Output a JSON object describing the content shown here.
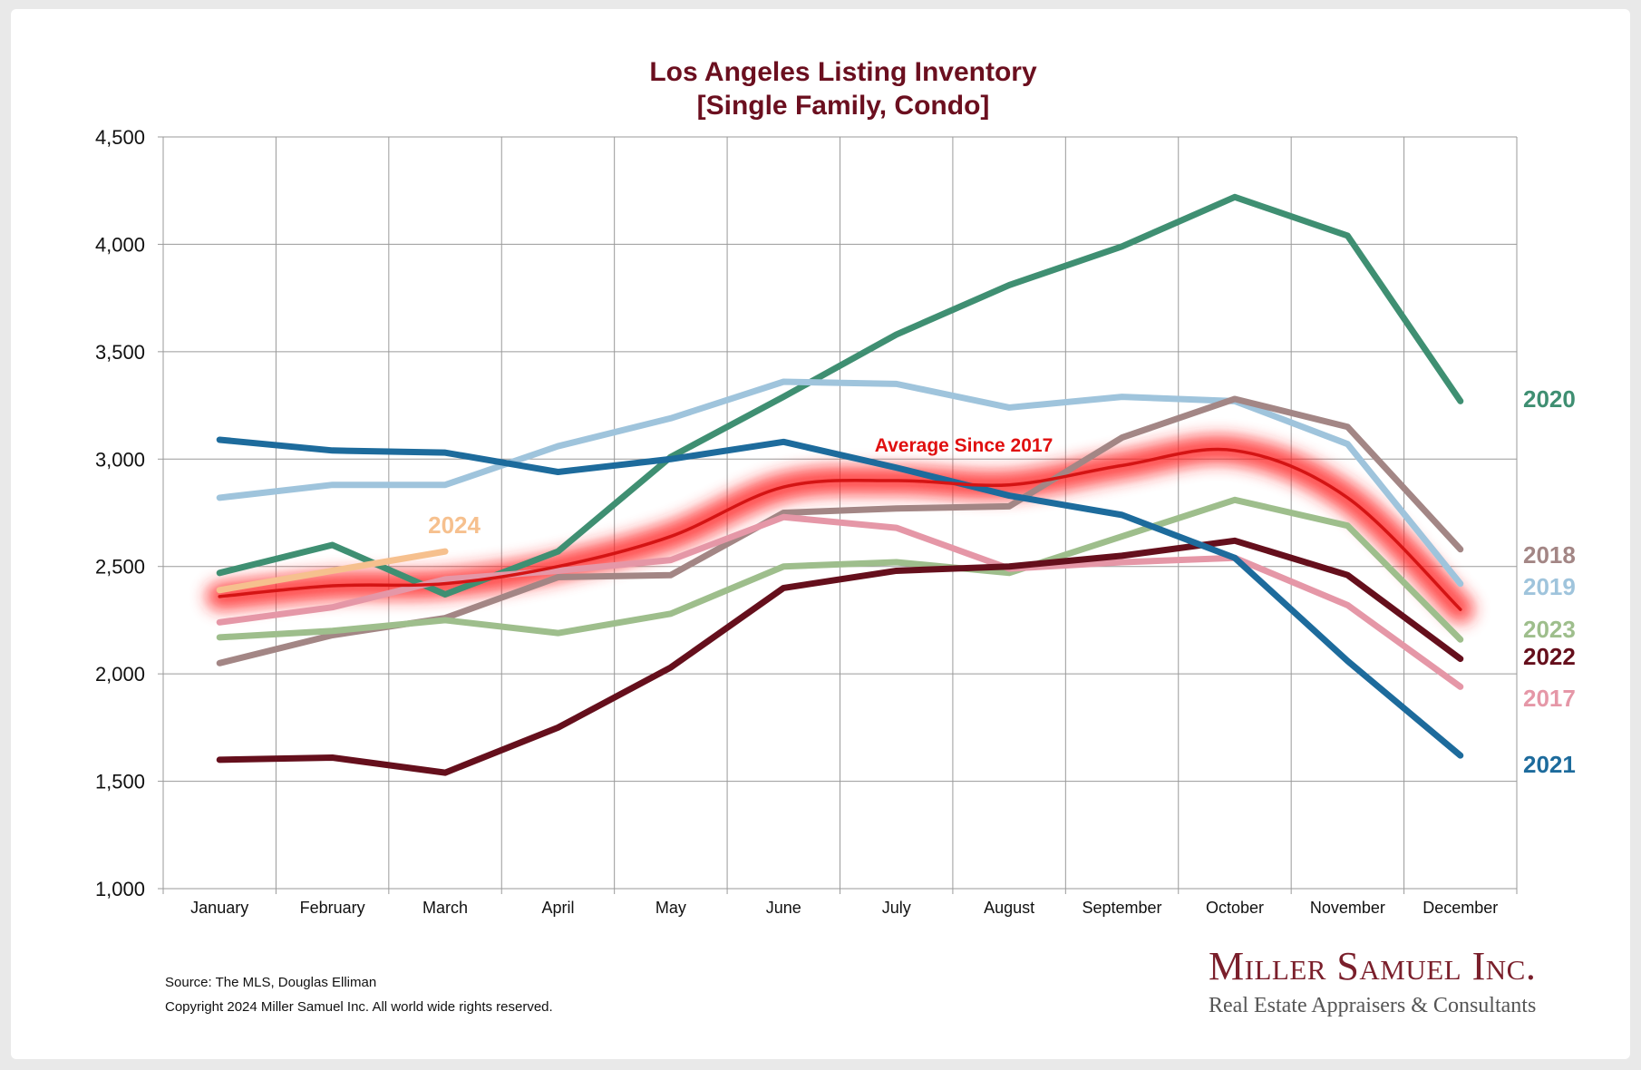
{
  "chart_data": {
    "type": "line",
    "title": "Los Angeles Listing Inventory",
    "subtitle": "[Single Family, Condo]",
    "xlabel": "",
    "ylabel": "",
    "categories": [
      "January",
      "February",
      "March",
      "April",
      "May",
      "June",
      "July",
      "August",
      "September",
      "October",
      "November",
      "December"
    ],
    "ylim": [
      1000,
      4500
    ],
    "yticks": [
      1000,
      1500,
      2000,
      2500,
      3000,
      3500,
      4000,
      4500
    ],
    "ytick_labels": [
      "1,000",
      "1,500",
      "2,000",
      "2,500",
      "3,000",
      "3,500",
      "4,000",
      "4,500"
    ],
    "grid": true,
    "average_label": "Average  Since 2017",
    "average": {
      "values": [
        2360,
        2410,
        2420,
        2500,
        2640,
        2870,
        2900,
        2880,
        2970,
        3040,
        2820,
        2300
      ],
      "color": "#d41414",
      "glow": "#ff2020"
    },
    "series": [
      {
        "name": "2020",
        "color": "#3f8f72",
        "values": [
          2470,
          2600,
          2370,
          2570,
          3010,
          3290,
          3580,
          3810,
          3990,
          4220,
          4040,
          3270
        ]
      },
      {
        "name": "2019",
        "color": "#9fc4dc",
        "values": [
          2820,
          2880,
          2880,
          3060,
          3190,
          3360,
          3350,
          3240,
          3290,
          3270,
          3070,
          2420
        ]
      },
      {
        "name": "2018",
        "color": "#a38685",
        "values": [
          2050,
          2180,
          2260,
          2450,
          2460,
          2750,
          2770,
          2780,
          3100,
          3280,
          3150,
          2580
        ]
      },
      {
        "name": "2023",
        "color": "#9ebe8c",
        "values": [
          2170,
          2200,
          2250,
          2190,
          2280,
          2500,
          2520,
          2470,
          2640,
          2810,
          2690,
          2160
        ]
      },
      {
        "name": "2017",
        "color": "#e597a7",
        "values": [
          2240,
          2310,
          2440,
          2480,
          2530,
          2730,
          2680,
          2490,
          2520,
          2540,
          2320,
          1940
        ]
      },
      {
        "name": "2022",
        "color": "#650f1c",
        "values": [
          1600,
          1610,
          1540,
          1750,
          2030,
          2400,
          2480,
          2500,
          2550,
          2620,
          2460,
          2070
        ]
      },
      {
        "name": "2021",
        "color": "#1d6b9c",
        "values": [
          3090,
          3040,
          3030,
          2940,
          3000,
          3080,
          2960,
          2830,
          2740,
          2540,
          2060,
          1620
        ]
      },
      {
        "name": "2024",
        "color": "#f6c08e",
        "values": [
          2390,
          2480,
          2570,
          null,
          null,
          null,
          null,
          null,
          null,
          null,
          null,
          null
        ]
      }
    ]
  },
  "footer": {
    "source": "Source: The MLS, Douglas Elliman",
    "copyright": "Copyright 2024 Miller Samuel Inc.  All world wide rights reserved."
  },
  "logo": {
    "name": "Miller Samuel Inc.",
    "tagline": "Real Estate Appraisers & Consultants"
  }
}
